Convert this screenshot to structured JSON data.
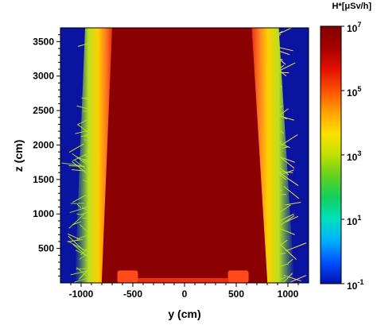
{
  "chart_data": {
    "type": "heatmap",
    "title": "",
    "xlabel": "y (cm)",
    "ylabel": "z (cm)",
    "xlim": [
      -1200,
      1200
    ],
    "ylim": [
      0,
      3700
    ],
    "x_ticks": [
      -1000,
      -500,
      0,
      500,
      1000
    ],
    "y_ticks": [
      500,
      1000,
      1500,
      2000,
      2500,
      3000,
      3500
    ],
    "x_tick_labels": [
      "-1000",
      "-500",
      "0",
      "500",
      "1000"
    ],
    "y_tick_labels": [
      "500",
      "1000",
      "1500",
      "2000",
      "2500",
      "3000",
      "3500"
    ],
    "colorbar": {
      "title": "H*[μSv/h]",
      "scale": "log",
      "range": [
        0.1,
        10000000
      ],
      "ticks": [
        {
          "value": 10000000,
          "base": "10",
          "exponent": "7"
        },
        {
          "value": 100000,
          "base": "10",
          "exponent": "5"
        },
        {
          "value": 1000,
          "base": "10",
          "exponent": "3"
        },
        {
          "value": 10,
          "base": "10",
          "exponent": "1"
        },
        {
          "value": 0.1,
          "base": "10",
          "exponent": "-1"
        }
      ],
      "colors": [
        "#0010b0",
        "#0050ff",
        "#00b0ff",
        "#00e0c0",
        "#10d060",
        "#60d020",
        "#c0e000",
        "#ffe000",
        "#ffa000",
        "#ff5000",
        "#e01000",
        "#a80000",
        "#800000"
      ]
    },
    "regions": [
      {
        "region": "central high-dose zone",
        "y_bottom": [
          -800,
          800
        ],
        "y_top": [
          -700,
          650
        ],
        "z_range": [
          50,
          3700
        ],
        "dose_level": 10000000
      },
      {
        "region": "left gradient band",
        "dose_range": [
          10,
          1000000
        ]
      },
      {
        "region": "right gradient band",
        "dose_range": [
          10,
          1000000
        ]
      },
      {
        "region": "outer background",
        "dose_level": 0.1
      }
    ],
    "colors": {
      "background": "#0a14a0",
      "core": "#8b0000",
      "edge_hot": "#ff4a1a",
      "edge_warm": "#ffd000",
      "edge_cool": "#70d040"
    }
  }
}
